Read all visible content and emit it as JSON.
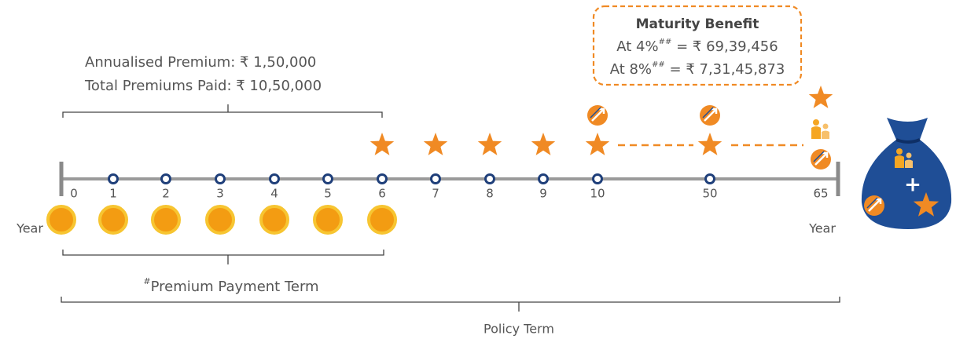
{
  "premium_info": {
    "annualised": "Annualised Premium: ₹ 1,50,000",
    "total_paid": "Total Premiums Paid: ₹ 10,50,000"
  },
  "maturity_benefit": {
    "title": "Maturity Benefit",
    "lines": [
      {
        "prefix": "At 4%",
        "note": "##",
        "value": " = ₹ 69,39,456"
      },
      {
        "prefix": "At 8%",
        "note": "##",
        "value": " = ₹ 7,31,45,873"
      }
    ]
  },
  "timeline": {
    "start_label": "Year",
    "end_label": "Year",
    "ticks": [
      "0",
      "1",
      "2",
      "3",
      "4",
      "5",
      "6",
      "7",
      "8",
      "9",
      "10",
      "50",
      "65"
    ]
  },
  "premium_payment_term": {
    "note": "#",
    "label": "Premium Payment Term"
  },
  "policy_term": "Policy Term"
}
